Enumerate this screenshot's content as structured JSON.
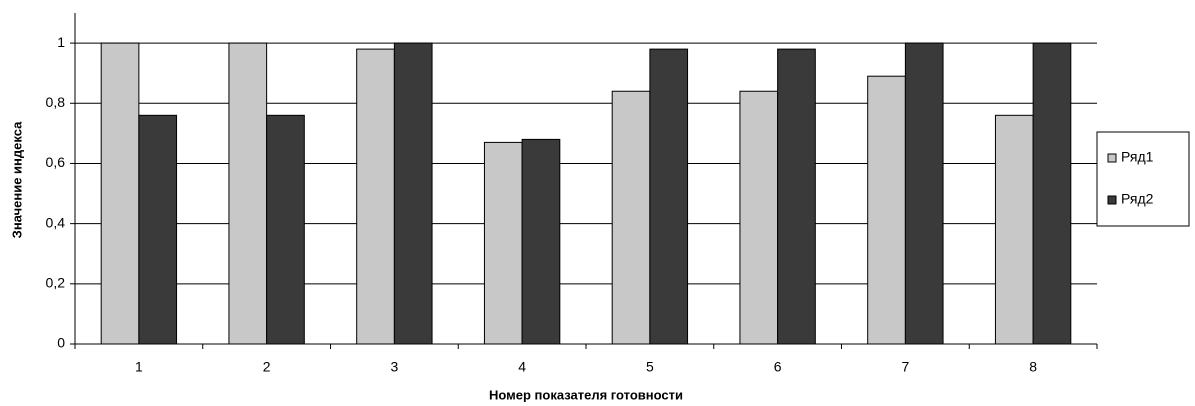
{
  "chart_data": {
    "type": "bar",
    "categories": [
      "1",
      "2",
      "3",
      "4",
      "5",
      "6",
      "7",
      "8"
    ],
    "series": [
      {
        "name": "Ряд1",
        "color": "#c8c8c8",
        "values": [
          1,
          1,
          0.98,
          0.67,
          0.84,
          0.84,
          0.89,
          0.76
        ]
      },
      {
        "name": "Ряд2",
        "color": "#3a3a3a",
        "values": [
          0.76,
          0.76,
          1,
          0.68,
          0.98,
          0.98,
          1,
          1
        ]
      }
    ],
    "ylim": [
      0,
      1.1
    ],
    "yticks": [
      0,
      {
        "value": 0.2,
        "label": "0,2"
      },
      {
        "value": 0.4,
        "label": "0,4"
      },
      {
        "value": 0.6,
        "label": "0,6"
      },
      {
        "value": 0.8,
        "label": "0,8"
      },
      1
    ],
    "grid": true,
    "legend": "right",
    "x_label": "Номер показателя готовности",
    "y_label": "Значение индекса"
  }
}
